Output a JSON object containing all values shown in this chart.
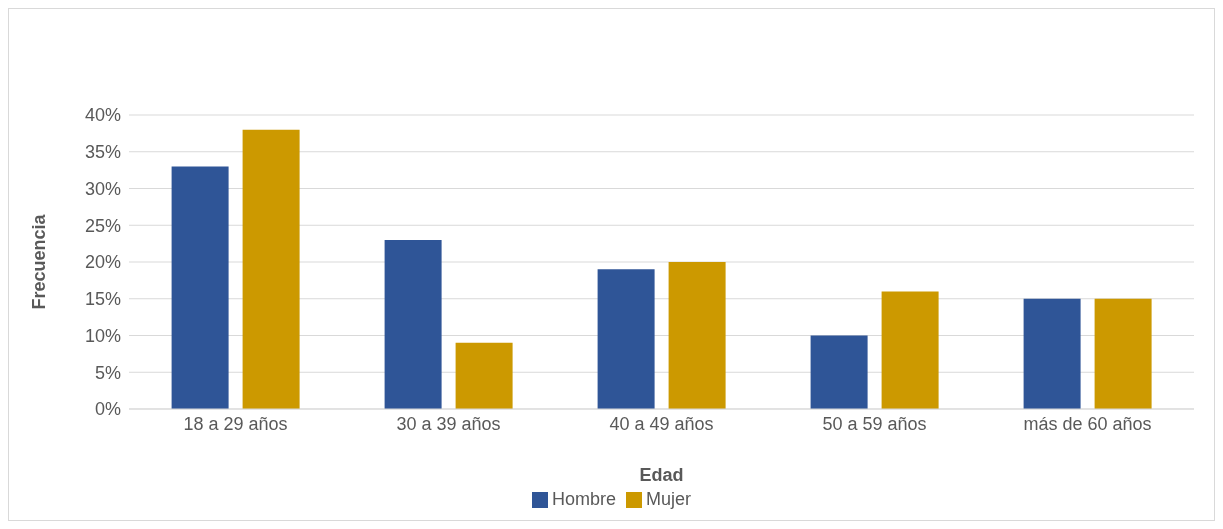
{
  "chart_data": {
    "type": "bar",
    "xlabel": "Edad",
    "ylabel": "Frecuencia",
    "categories": [
      "18 a 29 años",
      "30 a 39 años",
      "40 a 49 años",
      "50 a 59 años",
      "más de 60 años"
    ],
    "series": [
      {
        "name": "Hombre",
        "color": "#2f5597",
        "values": [
          33,
          23,
          19,
          10,
          15
        ]
      },
      {
        "name": "Mujer",
        "color": "#cc9900",
        "values": [
          38,
          9,
          20,
          16,
          15
        ]
      }
    ],
    "ylim": [
      0,
      40
    ],
    "yticks": [
      {
        "value": 0,
        "label": "0%"
      },
      {
        "value": 5,
        "label": "5%"
      },
      {
        "value": 10,
        "label": "10%"
      },
      {
        "value": 15,
        "label": "15%"
      },
      {
        "value": 20,
        "label": "20%"
      },
      {
        "value": 25,
        "label": "25%"
      },
      {
        "value": 30,
        "label": "30%"
      },
      {
        "value": 35,
        "label": "35%"
      },
      {
        "value": 40,
        "label": "40%"
      }
    ],
    "grid": "y",
    "legend": "bottom"
  }
}
